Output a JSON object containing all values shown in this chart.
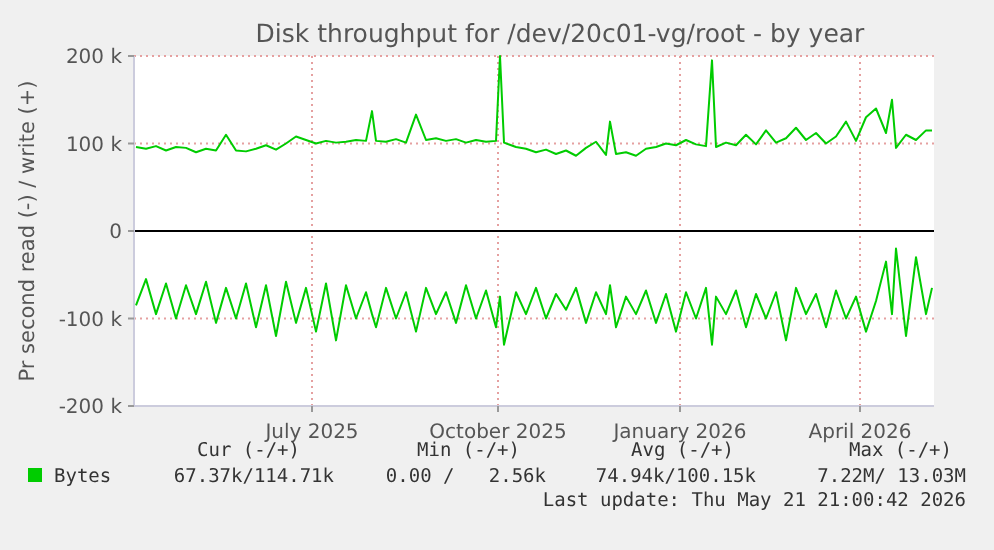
{
  "chart_data": {
    "type": "line",
    "title": "Disk throughput for /dev/20c01-vg/root - by year",
    "ylabel": "Pr second read (-) / write (+)",
    "x": [
      "2025-04-18",
      "2025-04-23",
      "2025-04-28",
      "2025-05-03",
      "2025-05-08",
      "2025-05-13",
      "2025-05-18",
      "2025-05-23",
      "2025-05-28",
      "2025-06-02",
      "2025-06-07",
      "2025-06-12",
      "2025-06-17",
      "2025-06-22",
      "2025-06-27",
      "2025-07-02",
      "2025-07-07",
      "2025-07-12",
      "2025-07-17",
      "2025-07-22",
      "2025-07-27",
      "2025-08-01",
      "2025-08-06",
      "2025-08-11",
      "2025-08-14",
      "2025-08-16",
      "2025-08-21",
      "2025-08-26",
      "2025-08-31",
      "2025-09-05",
      "2025-09-10",
      "2025-09-15",
      "2025-09-20",
      "2025-09-25",
      "2025-09-30",
      "2025-10-05",
      "2025-10-10",
      "2025-10-15",
      "2025-10-17",
      "2025-10-19",
      "2025-10-25",
      "2025-10-30",
      "2025-11-04",
      "2025-11-09",
      "2025-11-14",
      "2025-11-19",
      "2025-11-24",
      "2025-11-29",
      "2025-12-04",
      "2025-12-09",
      "2025-12-11",
      "2025-12-14",
      "2025-12-19",
      "2025-12-24",
      "2025-12-29",
      "2026-01-03",
      "2026-01-08",
      "2026-01-13",
      "2026-01-18",
      "2026-01-23",
      "2026-01-28",
      "2026-01-31",
      "2026-02-02",
      "2026-02-07",
      "2026-02-12",
      "2026-02-17",
      "2026-02-22",
      "2026-02-27",
      "2026-03-04",
      "2026-03-09",
      "2026-03-14",
      "2026-03-19",
      "2026-03-24",
      "2026-03-29",
      "2026-04-03",
      "2026-04-08",
      "2026-04-13",
      "2026-04-18",
      "2026-04-23",
      "2026-04-28",
      "2026-05-01",
      "2026-05-03",
      "2026-05-08",
      "2026-05-13",
      "2026-05-18",
      "2026-05-21"
    ],
    "series": [
      {
        "name": "Bytes",
        "color": "#00cc00",
        "values": [
          96000,
          94000,
          97000,
          92000,
          96000,
          95000,
          90000,
          94000,
          92000,
          110000,
          92000,
          91000,
          94000,
          98000,
          93000,
          100000,
          108000,
          104000,
          100000,
          103000,
          101000,
          102000,
          104000,
          103000,
          137000,
          103000,
          102000,
          105000,
          101000,
          133000,
          104000,
          106000,
          103000,
          105000,
          101000,
          104000,
          102000,
          103000,
          200000,
          101000,
          96000,
          94000,
          90000,
          93000,
          88000,
          92000,
          86000,
          95000,
          102000,
          87000,
          125000,
          88000,
          90000,
          86000,
          94000,
          96000,
          100000,
          98000,
          104000,
          99000,
          97000,
          195000,
          96000,
          101000,
          98000,
          110000,
          99000,
          115000,
          101000,
          106000,
          118000,
          104000,
          112000,
          100000,
          108000,
          125000,
          103000,
          130000,
          140000,
          112000,
          150000,
          95000,
          110000,
          104000,
          115000,
          115000
        ]
      },
      {
        "color": "#00cc00",
        "values": [
          -85000,
          -55000,
          -95000,
          -60000,
          -100000,
          -62000,
          -95000,
          -58000,
          -105000,
          -65000,
          -100000,
          -60000,
          -110000,
          -62000,
          -120000,
          -58000,
          -105000,
          -65000,
          -115000,
          -60000,
          -125000,
          -62000,
          -100000,
          -70000,
          -95000,
          -110000,
          -65000,
          -100000,
          -70000,
          -115000,
          -65000,
          -95000,
          -70000,
          -105000,
          -62000,
          -100000,
          -68000,
          -110000,
          -75000,
          -130000,
          -70000,
          -95000,
          -65000,
          -100000,
          -72000,
          -90000,
          -65000,
          -105000,
          -70000,
          -95000,
          -62000,
          -110000,
          -75000,
          -95000,
          -68000,
          -105000,
          -72000,
          -115000,
          -70000,
          -100000,
          -65000,
          -130000,
          -75000,
          -95000,
          -68000,
          -110000,
          -72000,
          -100000,
          -70000,
          -125000,
          -65000,
          -95000,
          -72000,
          -110000,
          -68000,
          -100000,
          -75000,
          -115000,
          -80000,
          -35000,
          -95000,
          -20000,
          -120000,
          -30000,
          -95000,
          -65000
        ]
      }
    ],
    "ylim": [
      -200000,
      200000
    ],
    "yticks": [
      {
        "value": -200000,
        "label": "-200 k"
      },
      {
        "value": -100000,
        "label": "-100 k"
      },
      0,
      {
        "value": 100000,
        "label": "100 k"
      },
      {
        "value": 200000,
        "label": "200 k"
      }
    ],
    "xlim": [
      "2025-04-17",
      "2026-05-22"
    ],
    "xticks": [
      {
        "value": "2025-07-15",
        "label": "July 2025"
      },
      {
        "value": "2025-10-16",
        "label": "October 2025"
      },
      {
        "value": "2026-01-15",
        "label": "January 2026"
      },
      {
        "value": "2026-04-15",
        "label": "April 2026"
      }
    ],
    "grid": true,
    "ref_lines": [
      {
        "axis": "y",
        "value": 0,
        "color": "#000000"
      }
    ],
    "legend": "bottom left",
    "annotations": [
      "Cur (-/+)",
      "Min (-/+)",
      "Avg (-/+)",
      "Max (-/+)",
      "67.37k/114.71k",
      "0.00 /   2.56k",
      "74.94k/100.15k",
      "7.22M/ 13.03M",
      "Last update: Thu May 21 21:00:42 2026"
    ]
  }
}
